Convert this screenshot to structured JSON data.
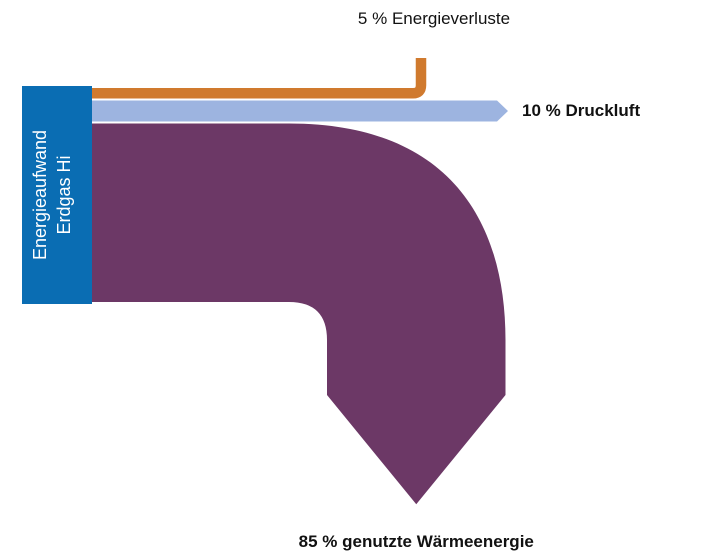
{
  "chart_data": {
    "type": "sankey",
    "source": {
      "labels": [
        "Energieaufwand",
        "Erdgas Hi"
      ],
      "color": "#0a6db3"
    },
    "flows": [
      {
        "name": "Energieverluste",
        "value": 5,
        "value_label": "5 %",
        "color": "#d07a2e"
      },
      {
        "name": "Druckluft",
        "value": 10,
        "value_label": "10 %",
        "color": "#9db4e0"
      },
      {
        "name": "genutzte Wärmeenergie",
        "value": 85,
        "value_label": "85 %",
        "color": "#6c3866"
      }
    ]
  }
}
